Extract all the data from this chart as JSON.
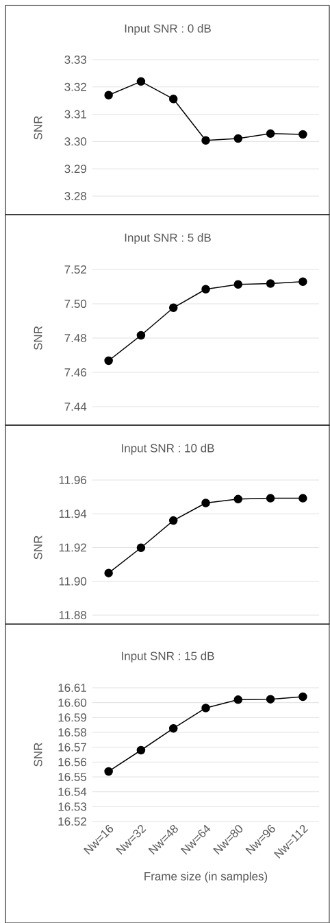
{
  "chart_data": [
    {
      "type": "line",
      "title": "Input  SNR : 0 dB",
      "ylabel": "SNR",
      "categories": [
        null,
        null,
        null,
        null,
        null,
        null,
        null
      ],
      "ylim": [
        3.28,
        3.33
      ],
      "yticks": [
        3.28,
        3.29,
        {
          "value": 3.3,
          "label": "3.30"
        },
        3.31,
        3.32,
        3.33
      ],
      "grid": "y",
      "marker": "circle",
      "line_style": "solid",
      "series": [
        {
          "color": "#000000",
          "values": [
            3.317,
            3.322,
            3.3156,
            3.3004,
            3.3011,
            3.3029,
            3.3026
          ]
        }
      ]
    },
    {
      "type": "line",
      "title": "Input SNR : 5 dB",
      "ylabel": "SNR",
      "categories": [
        null,
        null,
        null,
        null,
        null,
        null,
        null
      ],
      "ylim": [
        7.44,
        7.52
      ],
      "yticks": [
        7.44,
        7.46,
        7.48,
        {
          "value": 7.5,
          "label": "7.50"
        },
        7.52
      ],
      "grid": "y",
      "marker": "circle",
      "line_style": "solid",
      "series": [
        {
          "color": "#000000",
          "values": [
            7.4668,
            7.4816,
            7.4977,
            7.5085,
            7.5113,
            7.5118,
            7.5129
          ]
        }
      ]
    },
    {
      "type": "line",
      "title": "Input SNR : 10 dB",
      "ylabel": "SNR",
      "categories": [
        null,
        null,
        null,
        null,
        null,
        null,
        null
      ],
      "ylim": [
        11.88,
        11.96
      ],
      "yticks": [
        11.88,
        {
          "value": 11.9,
          "label": "11.90"
        },
        11.92,
        11.94,
        11.96
      ],
      "grid": "y",
      "marker": "circle",
      "line_style": "solid",
      "series": [
        {
          "color": "#000000",
          "values": [
            11.9049,
            11.9199,
            11.936,
            11.9464,
            11.9487,
            11.9492,
            11.9492
          ]
        }
      ]
    },
    {
      "type": "line",
      "title": "Input SNR : 15 dB",
      "xlabel": "Frame size (in samples)",
      "ylabel": "SNR",
      "categories": [
        "Nw=16",
        "Nw=32",
        "Nw=48",
        "Nw=64",
        "Nw=80",
        "Nw=96",
        "Nw=112"
      ],
      "ylim": [
        16.52,
        16.61
      ],
      "yticks": [
        16.52,
        16.53,
        16.54,
        16.55,
        16.56,
        16.57,
        16.58,
        16.59,
        {
          "value": 16.6,
          "label": "16.60"
        },
        16.61
      ],
      "grid": "y",
      "marker": "circle",
      "line_style": "solid",
      "series": [
        {
          "color": "#000000",
          "values": [
            16.5537,
            16.568,
            16.5827,
            16.5964,
            16.602,
            16.6023,
            16.604
          ]
        }
      ]
    }
  ]
}
